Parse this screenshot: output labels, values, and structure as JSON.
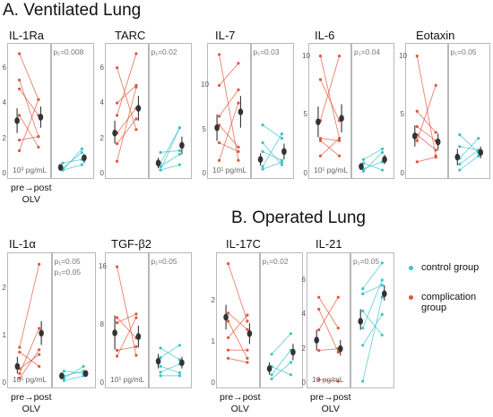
{
  "section_a_title": "A. Ventilated Lung",
  "section_b_title": "B. Operated Lung",
  "x_label_line1": "pre→post",
  "x_label_line2": "OLV",
  "legend": [
    {
      "label_lines": [
        "control group"
      ],
      "color": "#3cc3c8"
    },
    {
      "label_lines": [
        "complication",
        "group"
      ],
      "color": "#e0563b"
    }
  ],
  "colors": {
    "complication": "#e0563b",
    "control": "#3cc3c8",
    "mean": "#333333"
  },
  "chart_data": [
    {
      "type": "line",
      "title": "IL-1Ra",
      "p_text": [
        "p₁=0.008"
      ],
      "unit": "10³ pg/mL",
      "ylim": [
        0,
        7
      ],
      "yticks": [
        "0",
        "2",
        "4",
        "6"
      ],
      "complication": [
        [
          6.8,
          4.2
        ],
        [
          5.3,
          2.1
        ],
        [
          4.8,
          3.3
        ],
        [
          3.3,
          1.5
        ],
        [
          1.9,
          2.1
        ],
        [
          1.3,
          4.2
        ]
      ],
      "control": [
        [
          0.6,
          0.8
        ],
        [
          0.3,
          1.2
        ],
        [
          0.2,
          1.4
        ],
        [
          0.2,
          0.5
        ]
      ],
      "mean_complication": {
        "pre": [
          3.0,
          2.3,
          3.7
        ],
        "post": [
          3.2,
          2.6,
          3.8
        ]
      },
      "mean_control": {
        "pre": [
          0.35,
          0.25,
          0.45
        ],
        "post": [
          0.9,
          0.6,
          1.1
        ]
      }
    },
    {
      "type": "line",
      "title": "TARC",
      "p_text": [
        "p₁=0.02"
      ],
      "unit": "",
      "ylim": [
        0,
        7
      ],
      "yticks": [
        "0",
        "2",
        "4",
        "6"
      ],
      "complication": [
        [
          6.0,
          2.5
        ],
        [
          3.3,
          6.8
        ],
        [
          2.3,
          3.7
        ],
        [
          0.7,
          4.9
        ],
        [
          1.7,
          3.1
        ],
        [
          4.0,
          5.0
        ]
      ],
      "control": [
        [
          0.6,
          2.6
        ],
        [
          0.4,
          1.1
        ],
        [
          0.2,
          2.6
        ],
        [
          1.2,
          1.3
        ],
        [
          0.2,
          0.5
        ]
      ],
      "mean_complication": {
        "pre": [
          2.3,
          1.7,
          3.0
        ],
        "post": [
          3.7,
          3.0,
          4.4
        ]
      },
      "mean_control": {
        "pre": [
          0.6,
          0.3,
          0.9
        ],
        "post": [
          1.6,
          1.1,
          2.1
        ]
      }
    },
    {
      "type": "line",
      "title": "IL-7",
      "p_text": [
        "p₁=0.03"
      ],
      "unit": "10¹ pg/mL",
      "ylim": [
        0,
        14
      ],
      "yticks": [
        "0",
        "5",
        "10"
      ],
      "complication": [
        [
          13.5,
          1.5
        ],
        [
          10.0,
          12.5
        ],
        [
          6.5,
          9.5
        ],
        [
          3.5,
          2.5
        ],
        [
          1.5,
          8.0
        ],
        [
          5.5,
          3.0
        ]
      ],
      "control": [
        [
          5.5,
          4.0
        ],
        [
          2.5,
          1.5
        ],
        [
          0.8,
          4.5
        ],
        [
          0.5,
          1.3
        ],
        [
          3.5,
          1.0
        ]
      ],
      "mean_complication": {
        "pre": [
          5.2,
          3.7,
          6.7
        ],
        "post": [
          7.0,
          5.2,
          8.8
        ]
      },
      "mean_control": {
        "pre": [
          1.6,
          0.9,
          2.3
        ],
        "post": [
          2.5,
          1.6,
          3.4
        ]
      }
    },
    {
      "type": "line",
      "title": "IL-6",
      "p_text": [
        "p₁=0.04"
      ],
      "unit": "10¹ pg/mL",
      "ylim": [
        0,
        10.5
      ],
      "yticks": [
        "0",
        "5",
        "10"
      ],
      "complication": [
        [
          10.0,
          3.0
        ],
        [
          8.0,
          4.5
        ],
        [
          4.5,
          10.0
        ],
        [
          2.8,
          1.5
        ],
        [
          1.5,
          3.0
        ],
        [
          3.0,
          2.8
        ]
      ],
      "control": [
        [
          1.2,
          2.1
        ],
        [
          0.2,
          1.8
        ],
        [
          0.9,
          0.3
        ],
        [
          0.4,
          1.0
        ]
      ],
      "mean_complication": {
        "pre": [
          4.4,
          3.1,
          5.7
        ],
        "post": [
          4.7,
          3.5,
          5.9
        ]
      },
      "mean_control": {
        "pre": [
          0.6,
          0.3,
          0.9
        ],
        "post": [
          1.2,
          0.8,
          1.6
        ]
      }
    },
    {
      "type": "line",
      "title": "Eotaxin",
      "p_text": [
        "p₁=0.05"
      ],
      "unit": "",
      "ylim": [
        0,
        10.5
      ],
      "yticks": [
        "0",
        "5",
        "10"
      ],
      "complication": [
        [
          10.0,
          1.5
        ],
        [
          5.3,
          3.5
        ],
        [
          4.0,
          2.8
        ],
        [
          2.8,
          7.5
        ],
        [
          1.0,
          1.4
        ],
        [
          3.3,
          2.0
        ]
      ],
      "control": [
        [
          3.3,
          1.8
        ],
        [
          2.3,
          2.0
        ],
        [
          1.3,
          3.0
        ],
        [
          0.8,
          2.0
        ],
        [
          0.3,
          1.5
        ]
      ],
      "mean_complication": {
        "pre": [
          3.2,
          2.3,
          4.1
        ],
        "post": [
          2.7,
          2.0,
          3.4
        ]
      },
      "mean_control": {
        "pre": [
          1.4,
          0.7,
          2.1
        ],
        "post": [
          1.8,
          1.3,
          2.3
        ]
      }
    },
    {
      "type": "line",
      "title": "IL-1α",
      "p_text": [
        "p₁=0.05",
        "p₂=0.05"
      ],
      "unit": "10¹ pg/mL",
      "ylim": [
        0,
        2.6
      ],
      "yticks": [
        "0",
        "1",
        "2"
      ],
      "complication": [
        [
          0.75,
          2.5
        ],
        [
          0.65,
          0.35
        ],
        [
          0.3,
          0.6
        ],
        [
          0.1,
          0.7
        ],
        [
          0.2,
          1.15
        ]
      ],
      "control": [
        [
          0.15,
          0.25
        ],
        [
          0.25,
          0.2
        ],
        [
          0.1,
          0.35
        ],
        [
          0.05,
          0.15
        ]
      ],
      "mean_complication": {
        "pre": [
          0.35,
          0.2,
          0.55
        ],
        "post": [
          1.05,
          0.8,
          1.3
        ]
      },
      "mean_control": {
        "pre": [
          0.15,
          0.1,
          0.2
        ],
        "post": [
          0.2,
          0.15,
          0.25
        ]
      }
    },
    {
      "type": "line",
      "title": "TGF-β2",
      "p_text": [
        "p₁=0.05"
      ],
      "unit": "10¹ pg/mL",
      "ylim": [
        0,
        17
      ],
      "yticks": [
        "0",
        "8",
        "16"
      ],
      "complication": [
        [
          16.0,
          3.8
        ],
        [
          8.3,
          9.5
        ],
        [
          4.5,
          5.0
        ],
        [
          9.0,
          6.2
        ],
        [
          3.7,
          9.0
        ]
      ],
      "control": [
        [
          4.8,
          3.2
        ],
        [
          3.5,
          5.2
        ],
        [
          2.3,
          1.4
        ],
        [
          1.5,
          2.6
        ],
        [
          1.0,
          1.0
        ]
      ],
      "mean_complication": {
        "pre": [
          6.9,
          4.6,
          9.3
        ],
        "post": [
          6.4,
          4.9,
          7.9
        ]
      },
      "mean_control": {
        "pre": [
          3.0,
          2.0,
          4.0
        ],
        "post": [
          2.8,
          2.0,
          3.6
        ]
      }
    },
    {
      "type": "line",
      "title": "IL-17C",
      "p_text": [
        "p₁=0.02"
      ],
      "unit": "",
      "ylim": [
        0,
        3.0
      ],
      "yticks": [
        "0",
        "1",
        "2"
      ],
      "complication": [
        [
          2.9,
          1.5
        ],
        [
          1.7,
          1.3
        ],
        [
          1.5,
          0.6
        ],
        [
          1.1,
          1.65
        ],
        [
          0.8,
          0.8
        ],
        [
          0.6,
          0.5
        ]
      ],
      "control": [
        [
          0.7,
          1.2
        ],
        [
          0.4,
          0.2
        ],
        [
          0.2,
          0.8
        ],
        [
          0.1,
          0.5
        ]
      ],
      "mean_complication": {
        "pre": [
          1.6,
          1.3,
          1.9
        ],
        "post": [
          1.2,
          0.95,
          1.45
        ]
      },
      "mean_control": {
        "pre": [
          0.35,
          0.2,
          0.5
        ],
        "post": [
          0.75,
          0.55,
          0.95
        ]
      }
    },
    {
      "type": "line",
      "title": "IL-21",
      "p_text": [
        "p₁=0.05"
      ],
      "unit": "10 pg/mL",
      "ylim": [
        0,
        7.2
      ],
      "yticks": [
        "0",
        "2",
        "4",
        "6"
      ],
      "complication": [
        [
          5.0,
          3.2
        ],
        [
          4.3,
          1.8
        ],
        [
          3.1,
          5.0
        ],
        [
          1.9,
          2.0
        ],
        [
          0.2,
          0.1
        ]
      ],
      "control": [
        [
          5.5,
          7.0
        ],
        [
          5.2,
          5.7
        ],
        [
          4.2,
          2.8
        ],
        [
          3.2,
          6.0
        ],
        [
          2.2,
          4.0
        ],
        [
          0.1,
          5.0
        ]
      ],
      "mean_complication": {
        "pre": [
          2.5,
          1.9,
          3.1
        ],
        "post": [
          2.0,
          1.6,
          2.5
        ]
      },
      "mean_control": {
        "pre": [
          3.6,
          3.1,
          4.3
        ],
        "post": [
          5.2,
          4.8,
          5.7
        ]
      }
    }
  ]
}
